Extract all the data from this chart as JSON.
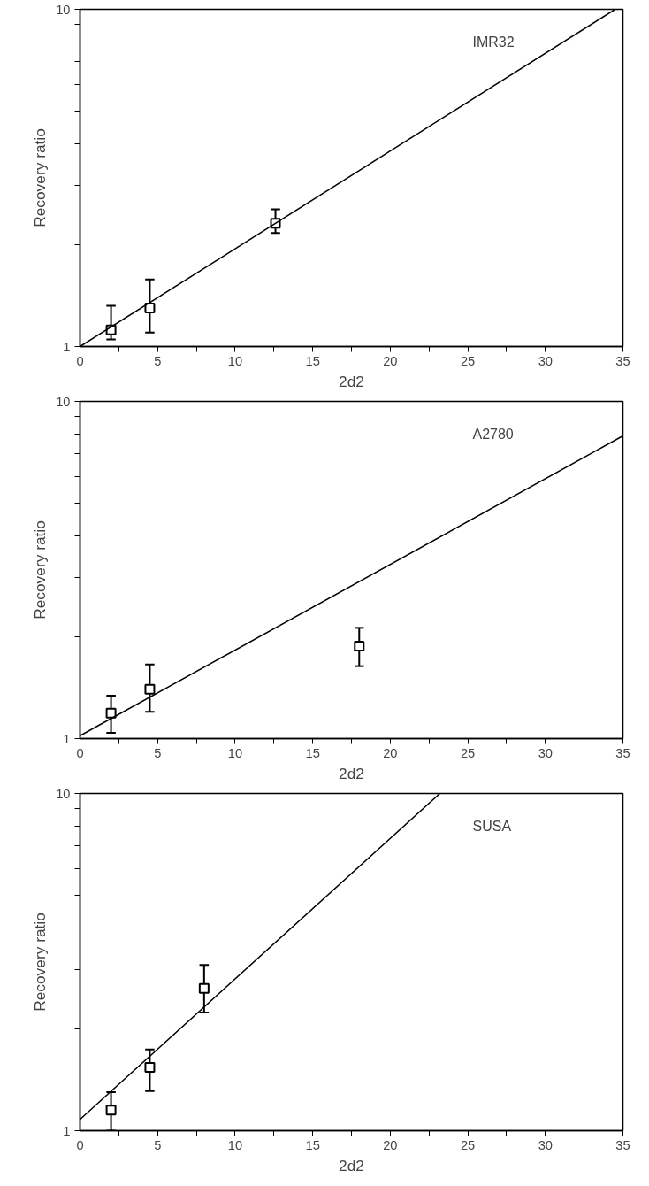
{
  "chart_data": [
    {
      "type": "scatter",
      "xlabel": "2d2",
      "ylabel": "Recovery ratio",
      "annotations": [
        "IMR32"
      ],
      "log": "y",
      "grid": false,
      "xlim": [
        0,
        35
      ],
      "ylim": [
        1,
        10
      ],
      "xticks": [
        0,
        {
          "value": 2.5,
          "label": null
        },
        5,
        {
          "value": 7.5,
          "label": null
        },
        10,
        {
          "value": 12.5,
          "label": null
        },
        15,
        {
          "value": 17.5,
          "label": null
        },
        20,
        {
          "value": 22.5,
          "label": null
        },
        25,
        {
          "value": 27.5,
          "label": null
        },
        30,
        {
          "value": 32.5,
          "label": null
        },
        35
      ],
      "yticks": [
        1,
        {
          "value": 2,
          "label": null
        },
        {
          "value": 3,
          "label": null
        },
        {
          "value": 4,
          "label": null
        },
        {
          "value": 5,
          "label": null
        },
        {
          "value": 6,
          "label": null
        },
        {
          "value": 7,
          "label": null
        },
        {
          "value": 8,
          "label": null
        },
        {
          "value": 9,
          "label": null
        },
        10
      ],
      "series": [
        {
          "marker": "square",
          "color": "#000000",
          "x": [
            2,
            4.5,
            12.6
          ],
          "values": [
            1.12,
            1.3,
            2.32
          ],
          "errors": [
            [
              1.05,
              1.32
            ],
            [
              1.1,
              1.58
            ],
            [
              2.17,
              2.55
            ]
          ]
        },
        {
          "type": "line",
          "color": "#000000",
          "x": [
            0,
            34.5
          ],
          "values": [
            1.0,
            10
          ]
        }
      ]
    },
    {
      "type": "scatter",
      "xlabel": "2d2",
      "ylabel": "Recovery ratio",
      "annotations": [
        "A2780"
      ],
      "log": "y",
      "grid": false,
      "xlim": [
        0,
        35
      ],
      "ylim": [
        1,
        10
      ],
      "xticks": [
        0,
        {
          "value": 2.5,
          "label": null
        },
        5,
        {
          "value": 7.5,
          "label": null
        },
        10,
        {
          "value": 12.5,
          "label": null
        },
        15,
        {
          "value": 17.5,
          "label": null
        },
        20,
        {
          "value": 22.5,
          "label": null
        },
        25,
        {
          "value": 27.5,
          "label": null
        },
        30,
        {
          "value": 32.5,
          "label": null
        },
        35
      ],
      "yticks": [
        1,
        {
          "value": 2,
          "label": null
        },
        {
          "value": 3,
          "label": null
        },
        {
          "value": 4,
          "label": null
        },
        {
          "value": 5,
          "label": null
        },
        {
          "value": 6,
          "label": null
        },
        {
          "value": 7,
          "label": null
        },
        {
          "value": 8,
          "label": null
        },
        {
          "value": 9,
          "label": null
        },
        10
      ],
      "series": [
        {
          "marker": "square",
          "color": "#000000",
          "x": [
            2,
            4.5,
            18
          ],
          "values": [
            1.19,
            1.4,
            1.88
          ],
          "errors": [
            [
              1.04,
              1.34
            ],
            [
              1.2,
              1.66
            ],
            [
              1.64,
              2.13
            ]
          ]
        },
        {
          "type": "line",
          "color": "#000000",
          "x": [
            0,
            35
          ],
          "values": [
            1.02,
            7.9
          ]
        }
      ]
    },
    {
      "type": "scatter",
      "xlabel": "2d2",
      "ylabel": "Recovery ratio",
      "annotations": [
        "SUSA"
      ],
      "log": "y",
      "grid": false,
      "xlim": [
        0,
        35
      ],
      "ylim": [
        1,
        10
      ],
      "xticks": [
        0,
        {
          "value": 2.5,
          "label": null
        },
        5,
        {
          "value": 7.5,
          "label": null
        },
        10,
        {
          "value": 12.5,
          "label": null
        },
        15,
        {
          "value": 17.5,
          "label": null
        },
        20,
        {
          "value": 22.5,
          "label": null
        },
        25,
        {
          "value": 27.5,
          "label": null
        },
        30,
        {
          "value": 32.5,
          "label": null
        },
        35
      ],
      "yticks": [
        1,
        {
          "value": 2,
          "label": null
        },
        {
          "value": 3,
          "label": null
        },
        {
          "value": 4,
          "label": null
        },
        {
          "value": 5,
          "label": null
        },
        {
          "value": 6,
          "label": null
        },
        {
          "value": 7,
          "label": null
        },
        {
          "value": 8,
          "label": null
        },
        {
          "value": 9,
          "label": null
        },
        10
      ],
      "series": [
        {
          "marker": "square",
          "color": "#000000",
          "x": [
            2,
            4.5,
            8
          ],
          "values": [
            1.15,
            1.54,
            2.64
          ],
          "errors": [
            [
              1.0,
              1.3
            ],
            [
              1.31,
              1.74
            ],
            [
              2.24,
              3.1
            ]
          ]
        },
        {
          "type": "line",
          "color": "#000000",
          "x": [
            0,
            23.2
          ],
          "values": [
            1.08,
            10
          ]
        }
      ]
    }
  ]
}
